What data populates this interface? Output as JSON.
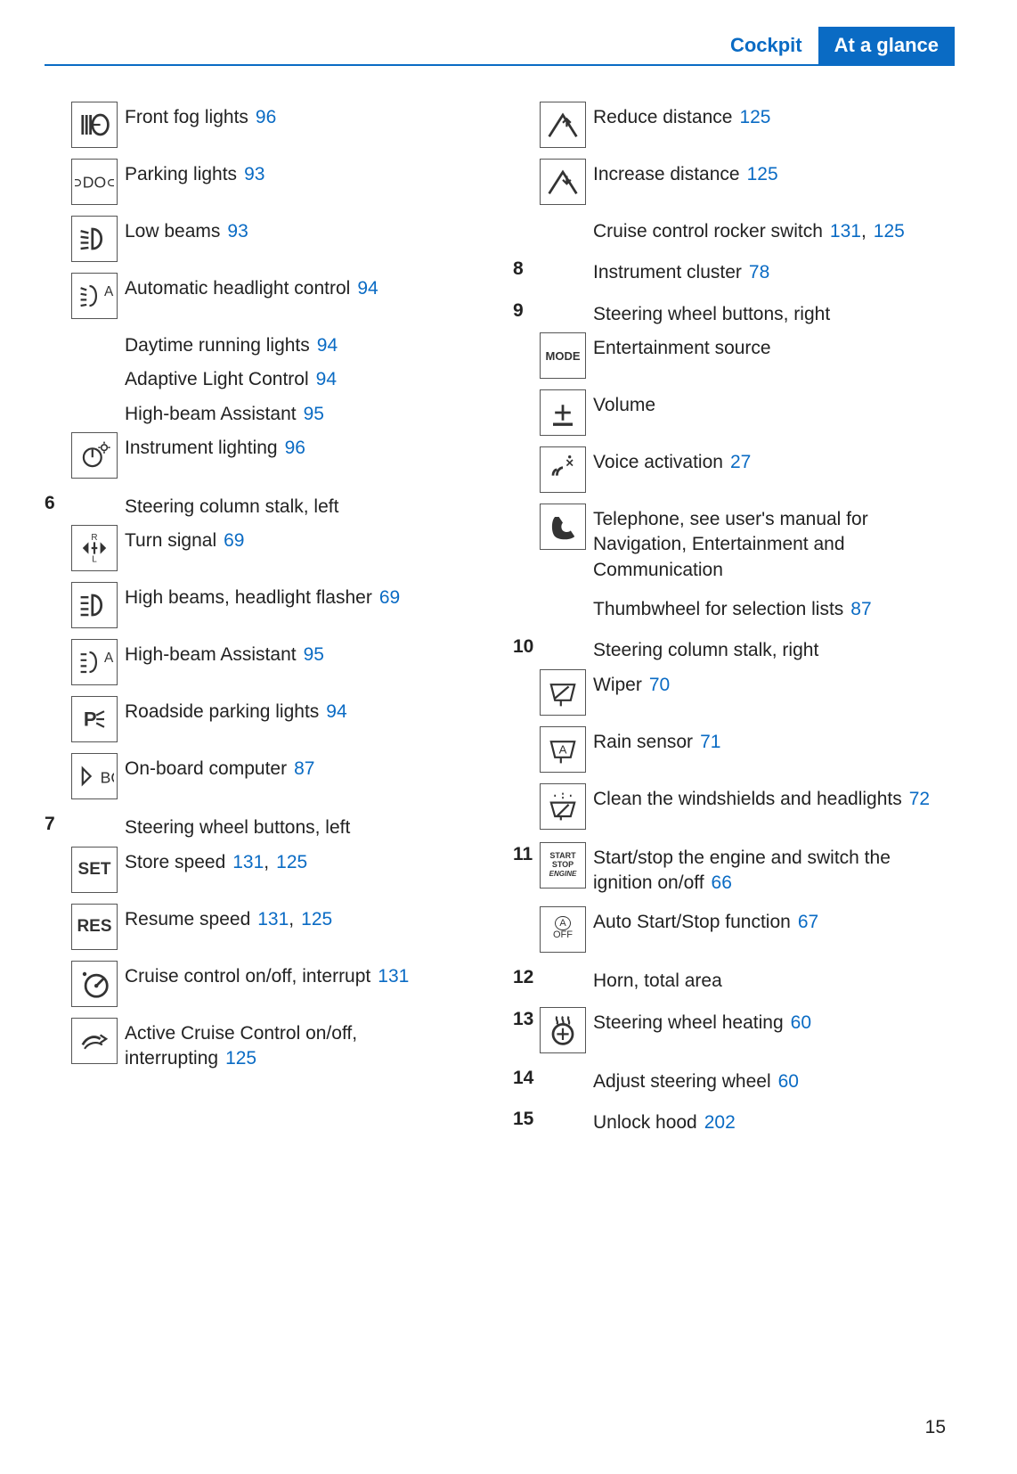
{
  "header": {
    "section": "Cockpit",
    "title": "At a glance"
  },
  "page_number": "15",
  "colors": {
    "accent": "#0a6bc4",
    "text": "#222",
    "border": "#555"
  },
  "left": [
    {
      "num": "",
      "icon": "fog",
      "text": "Front fog lights",
      "refs": [
        "96"
      ]
    },
    {
      "num": "",
      "icon": "parking",
      "text": "Parking lights",
      "refs": [
        "93"
      ]
    },
    {
      "num": "",
      "icon": "lowbeam",
      "text": "Low beams",
      "refs": [
        "93"
      ]
    },
    {
      "num": "",
      "icon": "auto",
      "text": "Automatic headlight control",
      "refs": [
        "94"
      ]
    },
    {
      "num": "",
      "icon": "",
      "text": "Daytime running lights",
      "refs": [
        "94"
      ]
    },
    {
      "num": "",
      "icon": "",
      "text": "Adaptive Light Control",
      "refs": [
        "94"
      ]
    },
    {
      "num": "",
      "icon": "",
      "text": "High-beam Assistant",
      "refs": [
        "95"
      ]
    },
    {
      "num": "",
      "icon": "instr",
      "text": "Instrument lighting",
      "refs": [
        "96"
      ]
    },
    {
      "num": "6",
      "icon": "",
      "text": "Steering column stalk, left",
      "refs": []
    },
    {
      "num": "",
      "icon": "turn",
      "text": "Turn signal",
      "refs": [
        "69"
      ]
    },
    {
      "num": "",
      "icon": "highbeam",
      "text": "High beams, headlight flasher",
      "refs": [
        "69"
      ]
    },
    {
      "num": "",
      "icon": "hba",
      "text": "High-beam Assistant",
      "refs": [
        "95"
      ]
    },
    {
      "num": "",
      "icon": "roadside",
      "text": "Roadside parking lights",
      "refs": [
        "94"
      ]
    },
    {
      "num": "",
      "icon": "bc",
      "text": "On-board computer",
      "refs": [
        "87"
      ]
    },
    {
      "num": "7",
      "icon": "",
      "text": "Steering wheel buttons, left",
      "refs": []
    },
    {
      "num": "",
      "icon": "SET",
      "text": "Store speed",
      "refs": [
        "131",
        "125"
      ]
    },
    {
      "num": "",
      "icon": "RES",
      "text": "Resume speed",
      "refs": [
        "131",
        "125"
      ]
    },
    {
      "num": "",
      "icon": "cruise",
      "text": "Cruise control on/off, interrupt",
      "refs": [
        "131"
      ]
    },
    {
      "num": "",
      "icon": "acc",
      "text": "Active Cruise Control on/off, interrupting",
      "refs": [
        "125"
      ]
    }
  ],
  "right": [
    {
      "num": "",
      "icon": "reduce",
      "text": "Reduce distance",
      "refs": [
        "125"
      ]
    },
    {
      "num": "",
      "icon": "increase",
      "text": "Increase distance",
      "refs": [
        "125"
      ]
    },
    {
      "num": "",
      "icon": "",
      "text": "Cruise control rocker switch",
      "refs": [
        "131",
        "125"
      ]
    },
    {
      "num": "8",
      "icon": "",
      "text": "Instrument cluster",
      "refs": [
        "78"
      ]
    },
    {
      "num": "9",
      "icon": "",
      "text": "Steering wheel buttons, right",
      "refs": []
    },
    {
      "num": "",
      "icon": "MODE",
      "text": "Entertainment source",
      "refs": []
    },
    {
      "num": "",
      "icon": "vol",
      "text": "Volume",
      "refs": []
    },
    {
      "num": "",
      "icon": "voice",
      "text": "Voice activation",
      "refs": [
        "27"
      ]
    },
    {
      "num": "",
      "icon": "phone",
      "text": "Telephone, see user's manual for Navigation, Entertainment and Communication",
      "refs": []
    },
    {
      "num": "",
      "icon": "",
      "text": "Thumbwheel for selection lists",
      "refs": [
        "87"
      ]
    },
    {
      "num": "10",
      "icon": "",
      "text": "Steering column stalk, right",
      "refs": []
    },
    {
      "num": "",
      "icon": "wiper",
      "text": "Wiper",
      "refs": [
        "70"
      ]
    },
    {
      "num": "",
      "icon": "rain",
      "text": "Rain sensor",
      "refs": [
        "71"
      ]
    },
    {
      "num": "",
      "icon": "wash",
      "text": "Clean the windshields and headlights",
      "refs": [
        "72"
      ]
    },
    {
      "num": "11",
      "icon": "start",
      "text": "Start/stop the engine and switch the ignition on/off",
      "refs": [
        "66"
      ]
    },
    {
      "num": "",
      "icon": "aoff",
      "text": "Auto Start/Stop function",
      "refs": [
        "67"
      ]
    },
    {
      "num": "12",
      "icon": "",
      "text": "Horn, total area",
      "refs": []
    },
    {
      "num": "13",
      "icon": "heat",
      "text": "Steering wheel heating",
      "refs": [
        "60"
      ]
    },
    {
      "num": "14",
      "icon": "",
      "text": "Adjust steering wheel",
      "refs": [
        "60"
      ]
    },
    {
      "num": "15",
      "icon": "",
      "text": "Unlock hood",
      "refs": [
        "202"
      ]
    }
  ]
}
